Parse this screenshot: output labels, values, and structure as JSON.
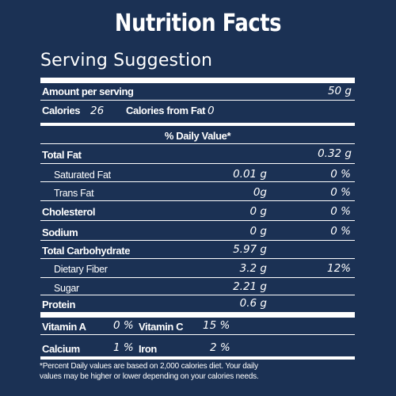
{
  "label": {
    "title": "Nutrition Facts",
    "subtitle": "Serving Suggestion",
    "amount_per_serving": {
      "label": "Amount per serving",
      "value": "50 g"
    },
    "calories": {
      "label": "Calories",
      "value": "26"
    },
    "calories_from_fat": {
      "label": "Calories from Fat",
      "value": "0"
    },
    "daily_value_header": "% Daily Value*",
    "nutrients": [
      {
        "name": "Total Fat",
        "amount": "",
        "dv": "0.32 g"
      },
      {
        "name": "Saturated Fat",
        "amount": "0.01 g",
        "dv": "0 %"
      },
      {
        "name": "Trans Fat",
        "amount": "0g",
        "dv": "0 %"
      },
      {
        "name": "Cholesterol",
        "amount": "0 g",
        "dv": "0 %"
      },
      {
        "name": "Sodium",
        "amount": "0 g",
        "dv": "0 %"
      },
      {
        "name": "Total Carbohydrate",
        "amount": "5.97 g",
        "dv": ""
      },
      {
        "name": "Dietary Fiber",
        "amount": "3.2 g",
        "dv": "12%"
      },
      {
        "name": "Sugar",
        "amount": "2.21 g",
        "dv": ""
      },
      {
        "name": "Protein",
        "amount": "0.6 g",
        "dv": ""
      }
    ],
    "vitamins": [
      {
        "name": "Vitamin A",
        "value": "0 %"
      },
      {
        "name": "Vitamin C",
        "value": "15 %"
      },
      {
        "name": "Calcium",
        "value": "1 %"
      },
      {
        "name": "Iron",
        "value": "2 %"
      }
    ],
    "footnote_line1": "*Percent Daily values are based on 2,000 calories diet. Your daily",
    "footnote_line2": "values may be higher or lower depending on your calories needs."
  },
  "colors": {
    "background": "#1b3154",
    "text": "#ffffff"
  }
}
